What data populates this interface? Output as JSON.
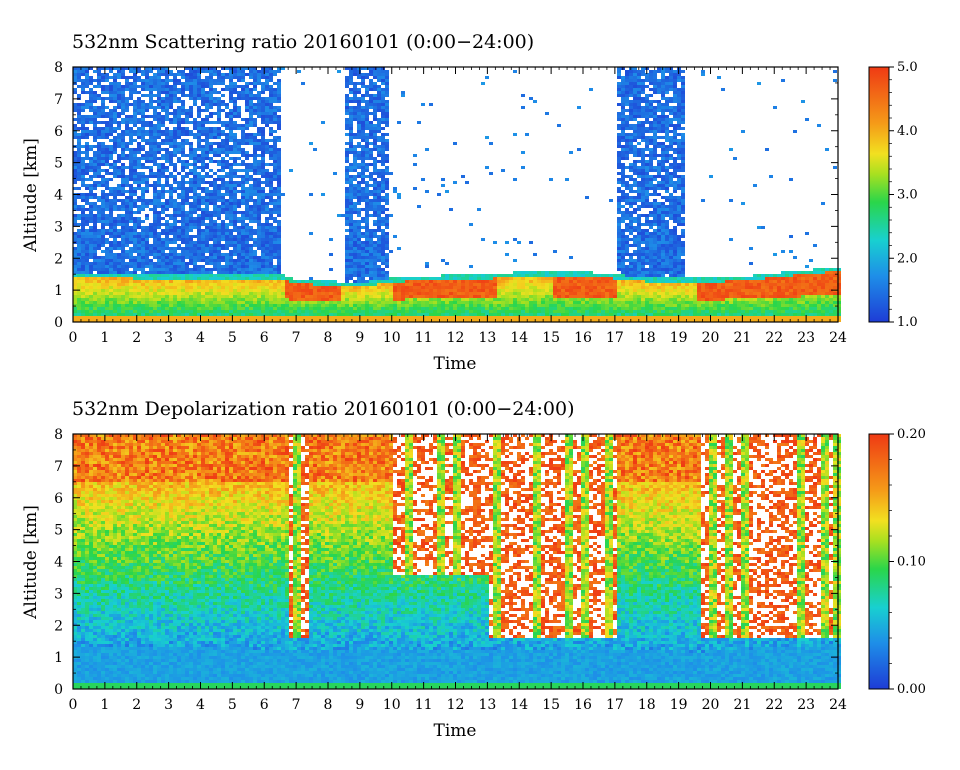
{
  "chart_data": [
    {
      "type": "heatmap",
      "title": "532nm Scattering ratio  20160101 (0:00−24:00)",
      "xlabel": "Time",
      "ylabel": "Altitude [km]",
      "xlim": [
        0,
        24
      ],
      "ylim": [
        0,
        8
      ],
      "x_ticks": [
        "0",
        "1",
        "2",
        "3",
        "4",
        "5",
        "6",
        "7",
        "8",
        "9",
        "10",
        "11",
        "12",
        "13",
        "14",
        "15",
        "16",
        "17",
        "18",
        "19",
        "20",
        "21",
        "22",
        "23",
        "24"
      ],
      "y_ticks": [
        "0",
        "1",
        "2",
        "3",
        "4",
        "5",
        "6",
        "7",
        "8"
      ],
      "colorbar": {
        "min": 1.0,
        "max": 5.0,
        "ticks": [
          "1.0",
          "2.0",
          "3.0",
          "4.0",
          "5.0"
        ]
      },
      "boundary_layer_top_km": [
        [
          0,
          1.5
        ],
        [
          1,
          1.5
        ],
        [
          2,
          1.45
        ],
        [
          3,
          1.45
        ],
        [
          4,
          1.45
        ],
        [
          5,
          1.45
        ],
        [
          6,
          1.45
        ],
        [
          6.5,
          1.45
        ],
        [
          7,
          1.3
        ],
        [
          8,
          1.25
        ],
        [
          9,
          1.2
        ],
        [
          10,
          1.35
        ],
        [
          11,
          1.4
        ],
        [
          12,
          1.45
        ],
        [
          13,
          1.45
        ],
        [
          14,
          1.55
        ],
        [
          15,
          1.55
        ],
        [
          16,
          1.55
        ],
        [
          17,
          1.45
        ],
        [
          18,
          1.35
        ],
        [
          19,
          1.35
        ],
        [
          20,
          1.35
        ],
        [
          21,
          1.4
        ],
        [
          22,
          1.5
        ],
        [
          23,
          1.6
        ],
        [
          24,
          1.7
        ]
      ],
      "noise_column_segments_h": [
        [
          0,
          6.5
        ],
        [
          8.5,
          9.8
        ],
        [
          17,
          19.2
        ]
      ]
    },
    {
      "type": "heatmap",
      "title": "532nm Depolarization ratio  20160101 (0:00−24:00)",
      "xlabel": "Time",
      "ylabel": "Altitude [km]",
      "xlim": [
        0,
        24
      ],
      "ylim": [
        0,
        8
      ],
      "x_ticks": [
        "0",
        "1",
        "2",
        "3",
        "4",
        "5",
        "6",
        "7",
        "8",
        "9",
        "10",
        "11",
        "12",
        "13",
        "14",
        "15",
        "16",
        "17",
        "18",
        "19",
        "20",
        "21",
        "22",
        "23",
        "24"
      ],
      "y_ticks": [
        "0",
        "1",
        "2",
        "3",
        "4",
        "5",
        "6",
        "7",
        "8"
      ],
      "colorbar": {
        "min": 0.0,
        "max": 0.2,
        "ticks": [
          "0.00",
          "0.10",
          "0.20"
        ]
      },
      "cloud_base_km": [
        [
          0,
          1.4
        ],
        [
          6.8,
          1.3
        ],
        [
          10,
          1.25
        ],
        [
          13,
          1.3
        ],
        [
          17,
          1.3
        ],
        [
          19.7,
          1.2
        ],
        [
          24,
          1.45
        ]
      ],
      "plume_times_h": [
        7.0,
        10.5,
        11.5,
        12.0,
        13.2,
        14.5,
        15.5,
        16.0,
        16.8,
        20.0,
        20.5,
        21.0,
        22.8,
        23.5,
        23.9
      ]
    }
  ]
}
